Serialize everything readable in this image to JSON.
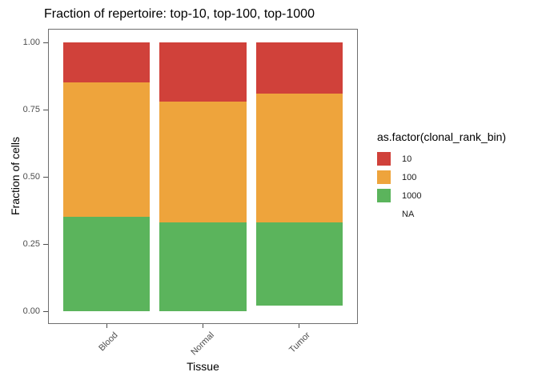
{
  "chart_data": {
    "type": "bar",
    "stacked": true,
    "title": "Fraction of repertoire: top-10, top-100, top-1000",
    "xlabel": "Tissue",
    "ylabel": "Fraction of cells",
    "categories": [
      "Blood",
      "Normal",
      "Tumor"
    ],
    "series": [
      {
        "name": "10",
        "color": "#d0413a",
        "values": [
          0.15,
          0.22,
          0.19
        ]
      },
      {
        "name": "100",
        "color": "#eea43c",
        "values": [
          0.5,
          0.45,
          0.48
        ]
      },
      {
        "name": "1000",
        "color": "#5bb45c",
        "values": [
          0.35,
          0.33,
          0.31
        ]
      },
      {
        "name": "NA",
        "color": "#ffffff",
        "values": [
          0.0,
          0.0,
          0.02
        ]
      }
    ],
    "y_ticks": [
      "0.00",
      "0.25",
      "0.50",
      "0.75",
      "1.00"
    ],
    "ylim": [
      0,
      1
    ],
    "legend_title": "as.factor(clonal_rank_bin)",
    "legend_position": "right",
    "grid": false
  },
  "colors": {
    "axis_text": "#4d4d4d",
    "panel_border": "#6e6e6e",
    "title_text": "#000000",
    "background": "#ffffff"
  }
}
